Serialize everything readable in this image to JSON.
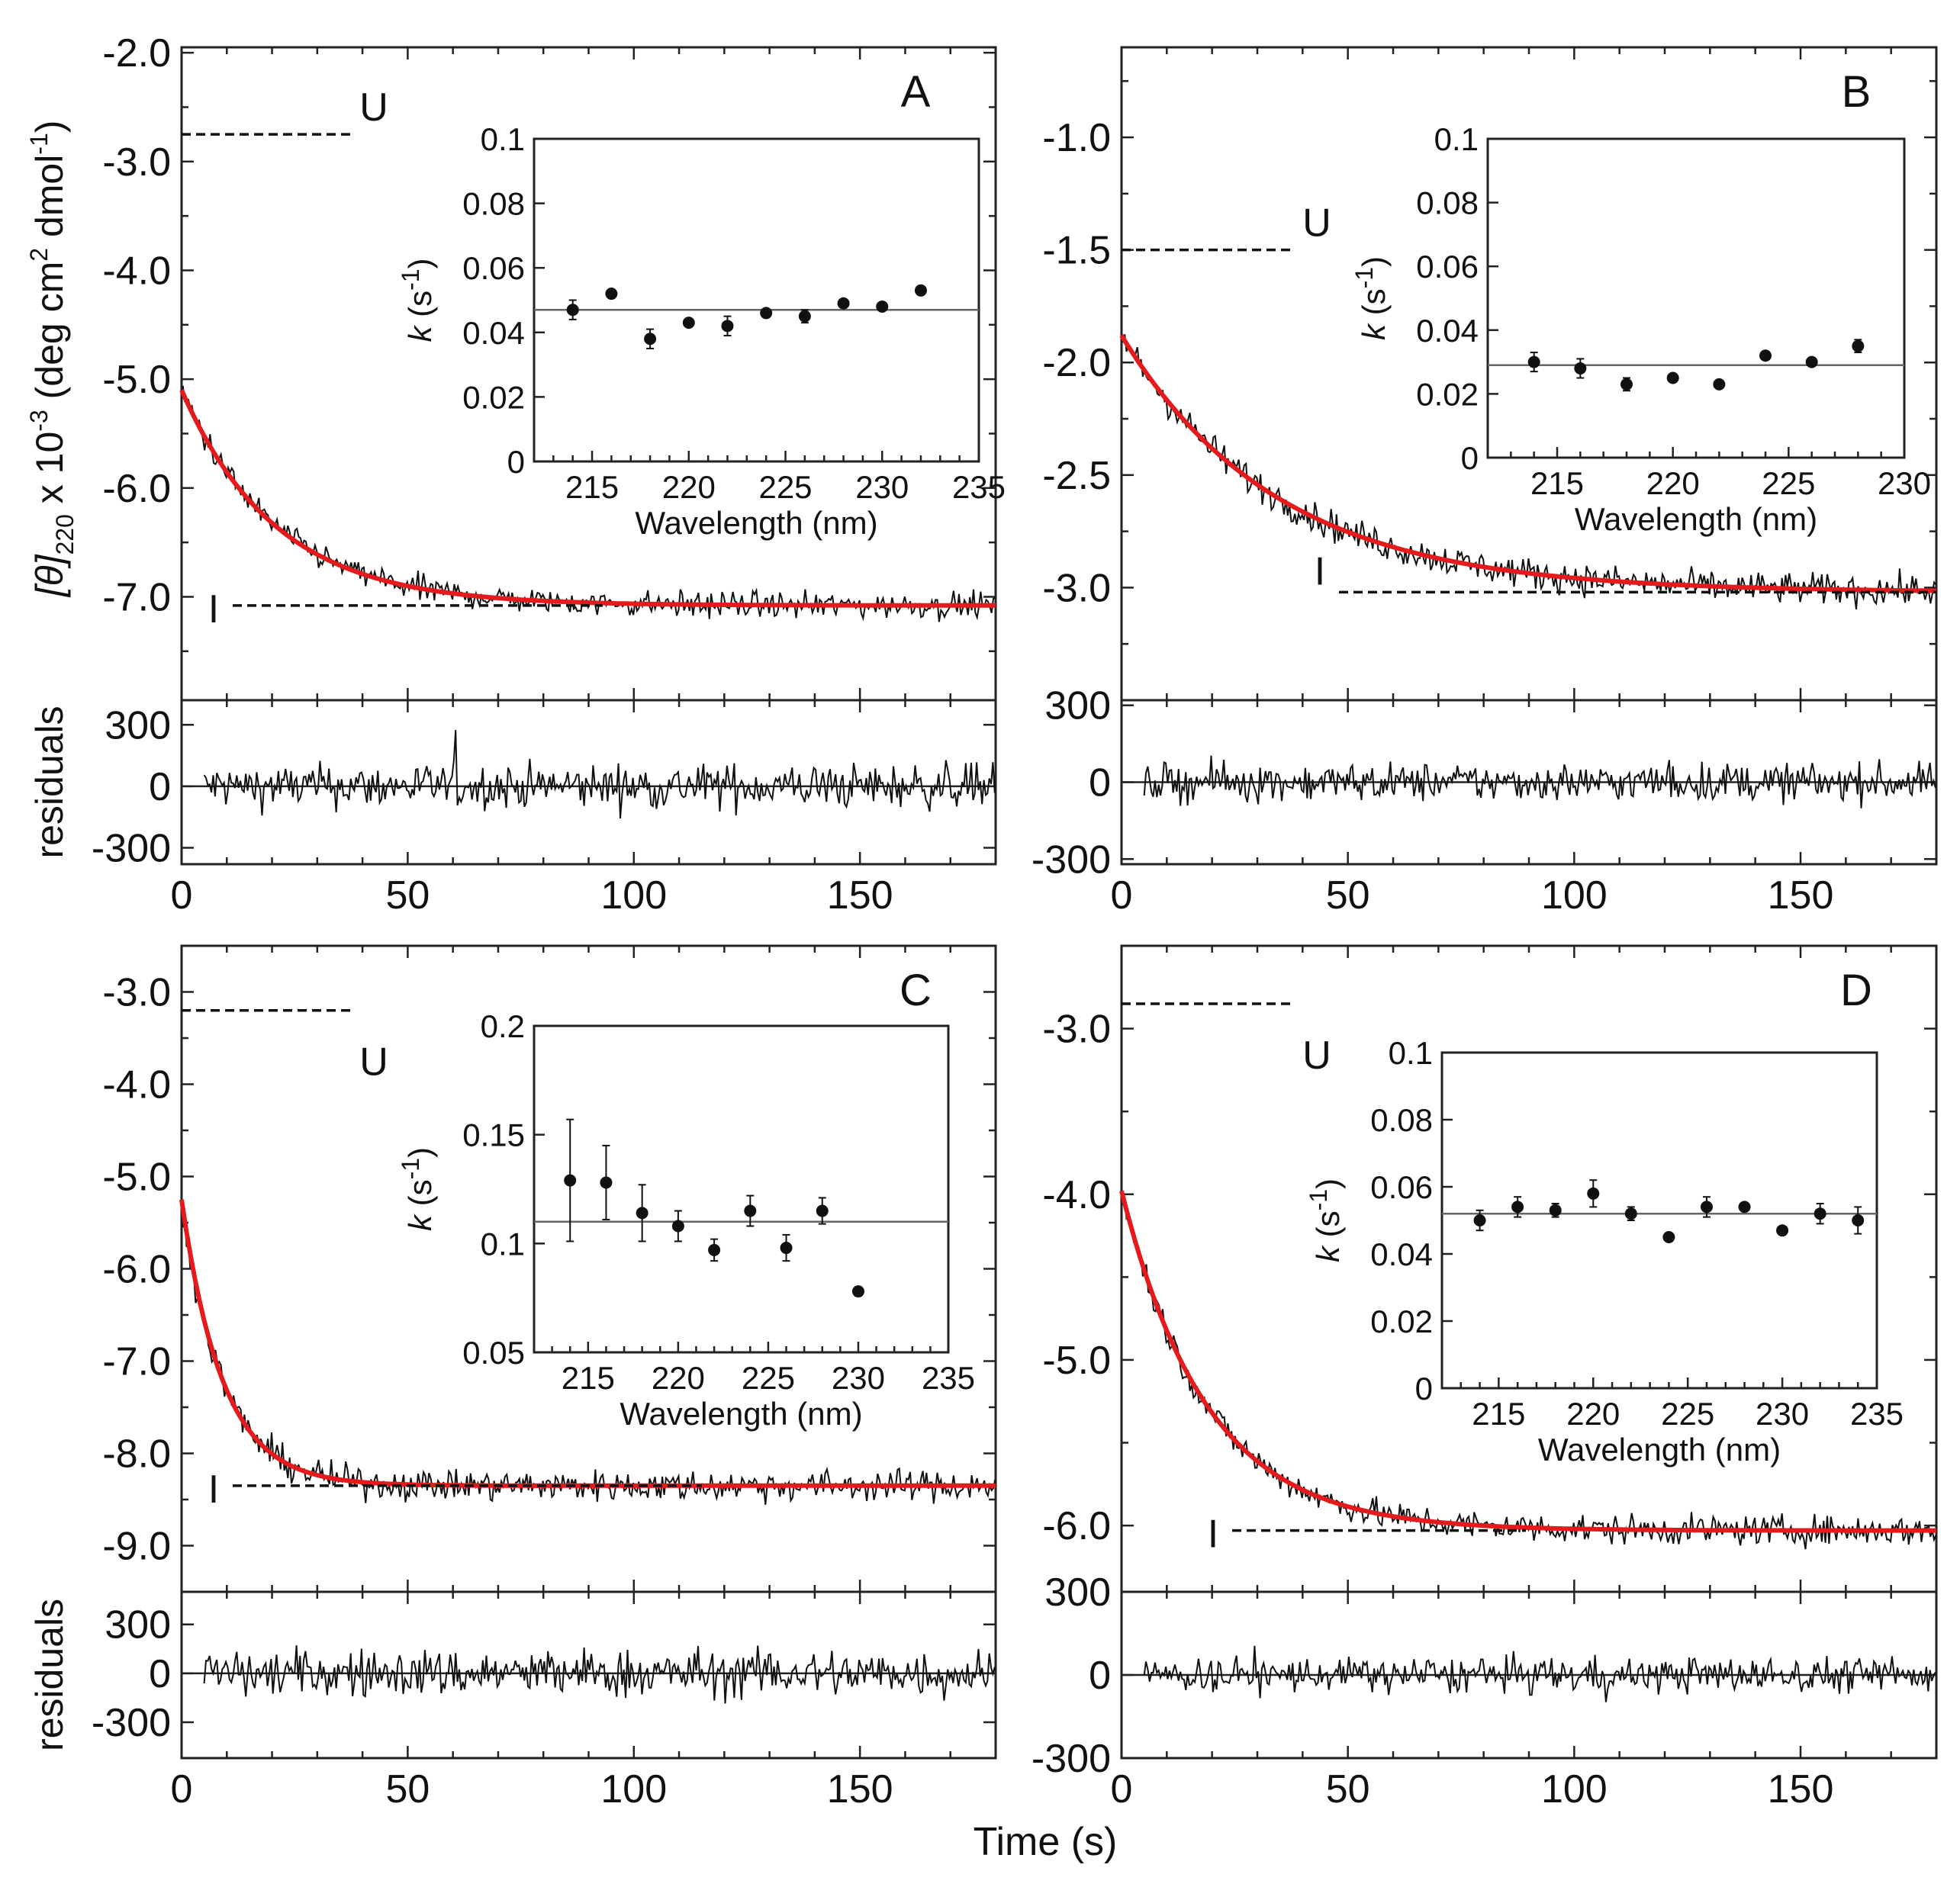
{
  "figure": {
    "shared_xlabel": "Time (s)"
  },
  "chart_data": [
    {
      "panel": "A",
      "type": "line",
      "title": "",
      "ylabel_main": "[θ]",
      "ylabel_sub": "220",
      "ylabel_rest": " x 10",
      "ylabel_exp": "-3",
      "ylabel_unit": " (deg cm",
      "ylabel_unit_exp": "2",
      "ylabel_unit_end": " dmol",
      "ylabel_unit_end_exp": "-1",
      "ylabel_close": ")",
      "xlabel": "Time (s)",
      "xlim": [
        0,
        180
      ],
      "xticks": [
        "0",
        "50",
        "100",
        "150"
      ],
      "ylim": [
        -7.95,
        -1.95
      ],
      "yticks": [
        "-2.0",
        "-3.0",
        "-4.0",
        "-5.0",
        "-6.0",
        "-7.0"
      ],
      "series": [
        {
          "name": "CD signal",
          "style": "noisy"
        },
        {
          "name": "single-exponential fit",
          "color": "#e41a1c",
          "t0": 0,
          "y_start": -5.1,
          "y_end": -7.08,
          "k": 0.048
        }
      ],
      "noise": 0.12,
      "levels": {
        "U": -2.75,
        "I": -7.08,
        "U_label": "U",
        "I_label": "I"
      },
      "residuals": {
        "ylabel": "residuals",
        "ylim": [
          -380,
          420
        ],
        "yticks": [
          "300",
          "0",
          "-300"
        ],
        "noise": 110
      },
      "inset": {
        "xlabel": "Wavelength (nm)",
        "ylabel_k": "k",
        "ylabel_unit": " (s",
        "ylabel_unit_exp": "-1",
        "ylabel_close": ")",
        "xlim": [
          212,
          235
        ],
        "xticks": [
          "215",
          "220",
          "225",
          "230",
          "235"
        ],
        "ylim": [
          0,
          0.1
        ],
        "yticks": [
          "0",
          "0.02",
          "0.04",
          "0.06",
          "0.08",
          "0.1"
        ],
        "mean": 0.047,
        "wavelength": [
          214,
          216,
          218,
          220,
          222,
          224,
          226,
          228,
          230,
          232
        ],
        "k": [
          0.047,
          0.052,
          0.038,
          0.043,
          0.042,
          0.046,
          0.045,
          0.049,
          0.048,
          0.053
        ],
        "err": [
          0.003,
          0.001,
          0.003,
          0.001,
          0.003,
          0.001,
          0.002,
          0.001,
          0.001,
          0.001
        ]
      }
    },
    {
      "panel": "B",
      "type": "line",
      "title": "",
      "xlabel": "Time (s)",
      "xlim": [
        0,
        180
      ],
      "xticks": [
        "0",
        "50",
        "100",
        "150"
      ],
      "ylim": [
        -3.5,
        -0.6
      ],
      "yticks": [
        "-1.0",
        "-1.5",
        "-2.0",
        "-2.5",
        "-3.0"
      ],
      "series": [
        {
          "name": "CD signal",
          "style": "noisy"
        },
        {
          "name": "single-exponential fit",
          "color": "#e41a1c",
          "t0": 0,
          "y_start": -1.88,
          "y_end": -3.02,
          "k": 0.029
        }
      ],
      "noise": 0.07,
      "levels": {
        "U": -1.5,
        "I": -3.02,
        "U_label": "U",
        "I_label": "I"
      },
      "residuals": {
        "ylabel": "",
        "ylim": [
          -320,
          320
        ],
        "yticks": [
          "300",
          "0",
          "-300"
        ],
        "noise": 75
      },
      "inset": {
        "xlabel": "Wavelength (nm)",
        "ylabel_k": "k",
        "ylabel_unit": " (s",
        "ylabel_unit_exp": "-1",
        "ylabel_close": ")",
        "xlim": [
          212,
          230
        ],
        "xticks": [
          "215",
          "220",
          "225",
          "230"
        ],
        "ylim": [
          0,
          0.1
        ],
        "yticks": [
          "0",
          "0.02",
          "0.04",
          "0.06",
          "0.08",
          "0.1"
        ],
        "mean": 0.029,
        "wavelength": [
          214,
          216,
          218,
          220,
          222,
          224,
          226,
          228
        ],
        "k": [
          0.03,
          0.028,
          0.023,
          0.025,
          0.023,
          0.032,
          0.03,
          0.035
        ],
        "err": [
          0.003,
          0.003,
          0.002,
          0.001,
          0.001,
          0.001,
          0.001,
          0.002
        ]
      }
    },
    {
      "panel": "C",
      "type": "line",
      "title": "",
      "xlabel": "Time (s)",
      "xlim": [
        0,
        180
      ],
      "xticks": [
        "0",
        "50",
        "100",
        "150"
      ],
      "ylim": [
        -9.5,
        -2.5
      ],
      "yticks": [
        "-3.0",
        "-4.0",
        "-5.0",
        "-6.0",
        "-7.0",
        "-8.0",
        "-9.0"
      ],
      "series": [
        {
          "name": "CD signal",
          "style": "noisy"
        },
        {
          "name": "single-exponential fit",
          "color": "#e41a1c",
          "t0": 0,
          "y_start": -5.25,
          "y_end": -8.35,
          "k": 0.11
        }
      ],
      "noise": 0.17,
      "levels": {
        "U": -3.2,
        "I": -8.35,
        "U_label": "U",
        "I_label": "I"
      },
      "residuals": {
        "ylabel": "residuals",
        "ylim": [
          -520,
          500
        ],
        "yticks": [
          "300",
          "0",
          "-300"
        ],
        "noise": 150
      },
      "inset": {
        "xlabel": "Wavelength (nm)",
        "ylabel_k": "k",
        "ylabel_unit": " (s",
        "ylabel_unit_exp": "-1",
        "ylabel_close": ")",
        "xlim": [
          212,
          235
        ],
        "xticks": [
          "215",
          "220",
          "225",
          "230",
          "235"
        ],
        "ylim": [
          0.05,
          0.2
        ],
        "yticks": [
          "0.05",
          "0.1",
          "0.15",
          "0.2"
        ],
        "mean": 0.11,
        "wavelength": [
          214,
          216,
          218,
          220,
          222,
          224,
          226,
          228,
          230
        ],
        "k": [
          0.129,
          0.128,
          0.114,
          0.108,
          0.097,
          0.115,
          0.098,
          0.115,
          0.078
        ],
        "err": [
          0.028,
          0.017,
          0.013,
          0.007,
          0.005,
          0.007,
          0.006,
          0.006,
          0.002
        ]
      }
    },
    {
      "panel": "D",
      "type": "line",
      "title": "",
      "xlabel": "Time (s)",
      "xlim": [
        0,
        180
      ],
      "xticks": [
        "0",
        "50",
        "100",
        "150"
      ],
      "ylim": [
        -6.4,
        -2.5
      ],
      "yticks": [
        "-3.0",
        "-4.0",
        "-5.0",
        "-6.0"
      ],
      "series": [
        {
          "name": "CD signal",
          "style": "noisy"
        },
        {
          "name": "single-exponential fit",
          "color": "#e41a1c",
          "t0": 0,
          "y_start": -3.98,
          "y_end": -6.03,
          "k": 0.053
        }
      ],
      "noise": 0.09,
      "levels": {
        "U": -2.85,
        "I": -6.03,
        "U_label": "U",
        "I_label": "I"
      },
      "residuals": {
        "ylabel": "",
        "ylim": [
          -300,
          300
        ],
        "yticks": [
          "300",
          "0",
          "-300"
        ],
        "noise": 65
      },
      "inset": {
        "xlabel": "Wavelength (nm)",
        "ylabel_k": "k",
        "ylabel_unit": " (s",
        "ylabel_unit_exp": "-1",
        "ylabel_close": ")",
        "xlim": [
          212,
          235
        ],
        "xticks": [
          "215",
          "220",
          "225",
          "230",
          "235"
        ],
        "ylim": [
          0,
          0.1
        ],
        "yticks": [
          "0",
          "0.02",
          "0.04",
          "0.06",
          "0.08",
          "0.1"
        ],
        "mean": 0.052,
        "wavelength": [
          214,
          216,
          218,
          220,
          222,
          224,
          226,
          228,
          230,
          232,
          234
        ],
        "k": [
          0.05,
          0.054,
          0.053,
          0.058,
          0.052,
          0.045,
          0.054,
          0.054,
          0.047,
          0.052,
          0.05
        ],
        "err": [
          0.003,
          0.003,
          0.002,
          0.004,
          0.002,
          0.001,
          0.003,
          0.001,
          0.001,
          0.003,
          0.004
        ]
      }
    }
  ]
}
